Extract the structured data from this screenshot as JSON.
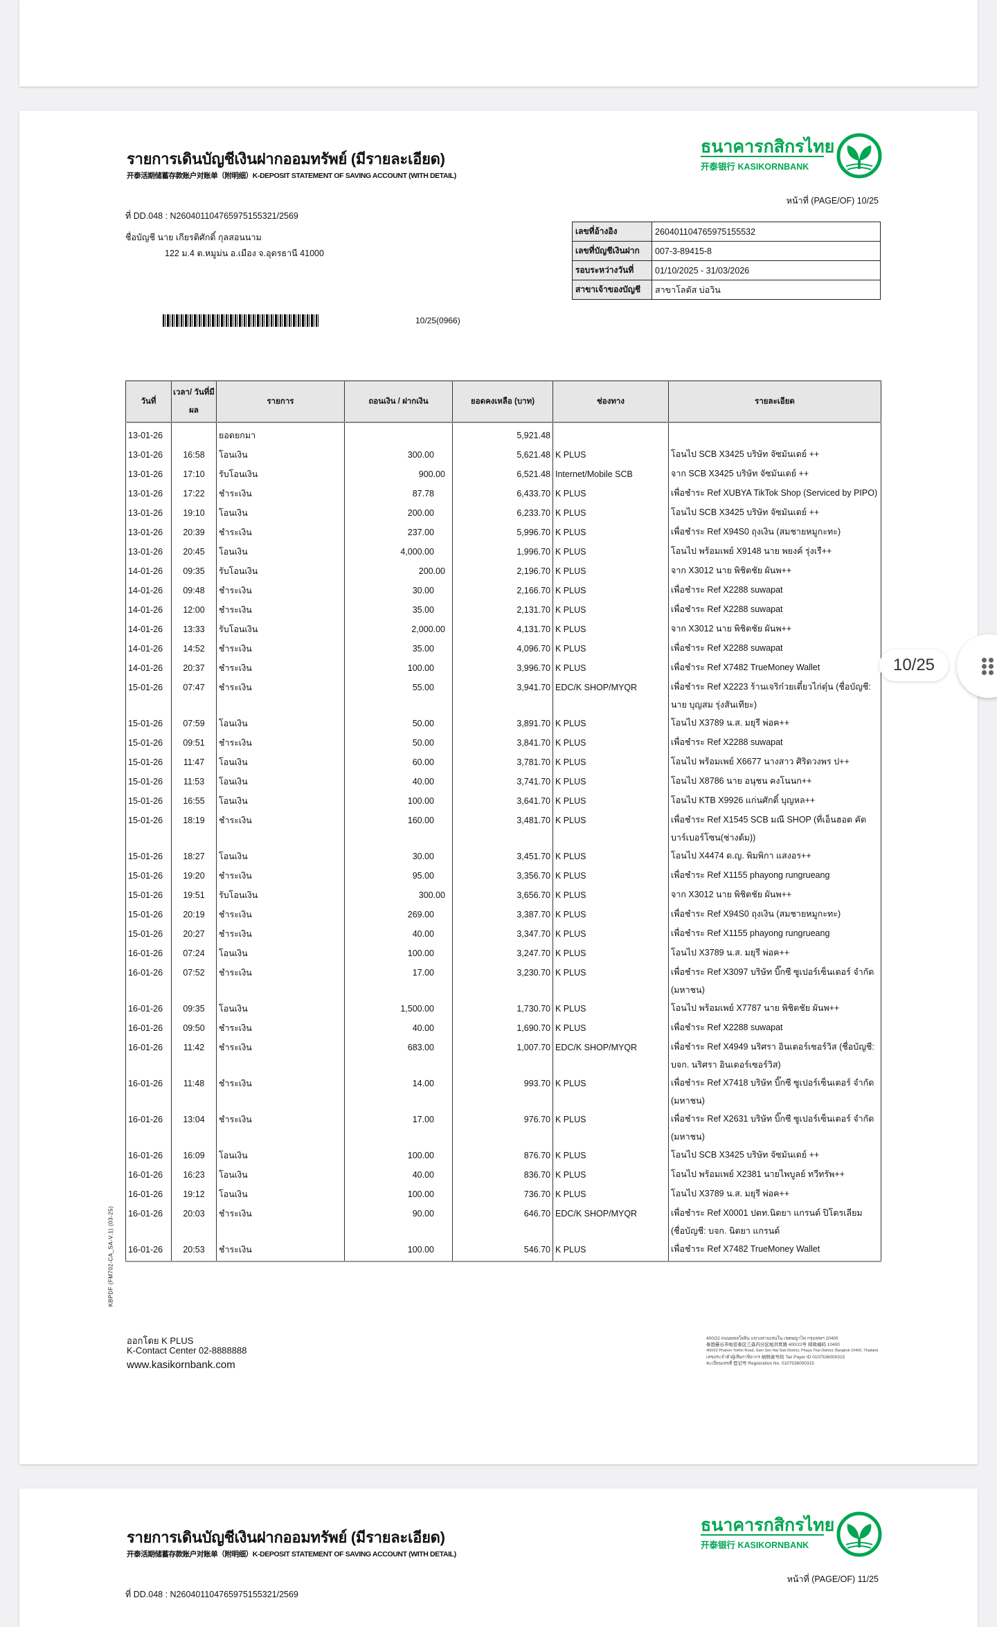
{
  "doc": {
    "title_th": "รายการเดินบัญชีเงินฝากออมทรัพย์ (มีรายละเอียด)",
    "title_en": "开泰活期储蓄存款账户对账单（附明细）K-DEPOSIT STATEMENT OF SAVING ACCOUNT (WITH DETAIL)",
    "bank_name_th": "ธนาคารกสิกรไทย",
    "bank_name_en": "开泰银行 KASIKORNBANK",
    "brand_color": "#00a651",
    "page_of": "หน้าที่ (PAGE/OF) 10/25",
    "ref_line": "ที่ DD.048 : N260401104765975155321/2569",
    "account_name": "ชื่อบัญชี  นาย เกียรติศักดิ์ กุลสอนนาม",
    "address": "122 ม.4 ต.หมูม่น อ.เมือง จ.อุดรธานี 41000",
    "barcode_label": "10/25(0966)",
    "info": [
      {
        "label": "เลขที่อ้างอิง",
        "value": "260401104765975155532"
      },
      {
        "label": "เลขที่บัญชีเงินฝาก",
        "value": "007-3-89415-8"
      },
      {
        "label": "รอบระหว่างวันที่",
        "value": "01/10/2025 - 31/03/2026"
      },
      {
        "label": "สาขาเจ้าของบัญชี",
        "value": "สาขาโลตัส บ่อวิน"
      }
    ],
    "form_code": "KBPDF (FM702-CA_SA-V.1) (03-25)",
    "columns": [
      "วันที่",
      "เวลา/ วันที่มีผล",
      "รายการ",
      "ถอนเงิน / ฝากเงิน",
      "ยอดคงเหลือ (บาท)",
      "ช่องทาง",
      "รายละเอียด"
    ],
    "rows": [
      {
        "date": "13-01-26",
        "time": "",
        "type": "ยอดยกมา",
        "withdraw": "",
        "deposit": "",
        "balance": "5,921.48",
        "channel": "",
        "detail": ""
      },
      {
        "date": "13-01-26",
        "time": "16:58",
        "type": "โอนเงิน",
        "withdraw": "300.00",
        "deposit": "",
        "balance": "5,621.48",
        "channel": "K PLUS",
        "detail": "โอนไป SCB X3425 บริษัท จัซมันเดย์ ++"
      },
      {
        "date": "13-01-26",
        "time": "17:10",
        "type": "รับโอนเงิน",
        "withdraw": "",
        "deposit": "900.00",
        "balance": "6,521.48",
        "channel": "Internet/Mobile SCB",
        "detail": "จาก SCB X3425 บริษัท จัซมันเดย์ ++"
      },
      {
        "date": "13-01-26",
        "time": "17:22",
        "type": "ชำระเงิน",
        "withdraw": "87.78",
        "deposit": "",
        "balance": "6,433.70",
        "channel": "K PLUS",
        "detail": "เพื่อชำระ Ref XUBYA TikTok Shop (Serviced by PIPO)"
      },
      {
        "date": "13-01-26",
        "time": "19:10",
        "type": "โอนเงิน",
        "withdraw": "200.00",
        "deposit": "",
        "balance": "6,233.70",
        "channel": "K PLUS",
        "detail": "โอนไป SCB X3425 บริษัท จัซมันเดย์ ++"
      },
      {
        "date": "13-01-26",
        "time": "20:39",
        "type": "ชำระเงิน",
        "withdraw": "237.00",
        "deposit": "",
        "balance": "5,996.70",
        "channel": "K PLUS",
        "detail": "เพื่อชำระ Ref X94S0 ถุงเงิน (สมชายหมูกะทะ)"
      },
      {
        "date": "13-01-26",
        "time": "20:45",
        "type": "โอนเงิน",
        "withdraw": "4,000.00",
        "deposit": "",
        "balance": "1,996.70",
        "channel": "K PLUS",
        "detail": "โอนไป พร้อมเพย์ X9148 นาย พยงค์ รุ่งเรื++"
      },
      {
        "date": "14-01-26",
        "time": "09:35",
        "type": "รับโอนเงิน",
        "withdraw": "",
        "deposit": "200.00",
        "balance": "2,196.70",
        "channel": "K PLUS",
        "detail": "จาก X3012 นาย พิชิตชัย ผันพ++"
      },
      {
        "date": "14-01-26",
        "time": "09:48",
        "type": "ชำระเงิน",
        "withdraw": "30.00",
        "deposit": "",
        "balance": "2,166.70",
        "channel": "K PLUS",
        "detail": "เพื่อชำระ Ref X2288 suwapat"
      },
      {
        "date": "14-01-26",
        "time": "12:00",
        "type": "ชำระเงิน",
        "withdraw": "35.00",
        "deposit": "",
        "balance": "2,131.70",
        "channel": "K PLUS",
        "detail": "เพื่อชำระ Ref X2288 suwapat"
      },
      {
        "date": "14-01-26",
        "time": "13:33",
        "type": "รับโอนเงิน",
        "withdraw": "",
        "deposit": "2,000.00",
        "balance": "4,131.70",
        "channel": "K PLUS",
        "detail": "จาก X3012 นาย พิชิตชัย ผันพ++"
      },
      {
        "date": "14-01-26",
        "time": "14:52",
        "type": "ชำระเงิน",
        "withdraw": "35.00",
        "deposit": "",
        "balance": "4,096.70",
        "channel": "K PLUS",
        "detail": "เพื่อชำระ Ref X2288 suwapat"
      },
      {
        "date": "14-01-26",
        "time": "20:37",
        "type": "ชำระเงิน",
        "withdraw": "100.00",
        "deposit": "",
        "balance": "3,996.70",
        "channel": "K PLUS",
        "detail": "เพื่อชำระ Ref X7482 TrueMoney Wallet"
      },
      {
        "date": "15-01-26",
        "time": "07:47",
        "type": "ชำระเงิน",
        "withdraw": "55.00",
        "deposit": "",
        "balance": "3,941.70",
        "channel": "EDC/K SHOP/MYQR",
        "detail": "เพื่อชำระ Ref X2223 ร้านเจริก๋วยเตี๋ยวไก่ตุ๋น (ชื่อบัญชี: นาย บุญสม รุ่งสันเทียะ)"
      },
      {
        "date": "15-01-26",
        "time": "07:59",
        "type": "โอนเงิน",
        "withdraw": "50.00",
        "deposit": "",
        "balance": "3,891.70",
        "channel": "K PLUS",
        "detail": "โอนไป X3789 น.ส. มยุรี พ่อค++"
      },
      {
        "date": "15-01-26",
        "time": "09:51",
        "type": "ชำระเงิน",
        "withdraw": "50.00",
        "deposit": "",
        "balance": "3,841.70",
        "channel": "K PLUS",
        "detail": "เพื่อชำระ Ref X2288 suwapat"
      },
      {
        "date": "15-01-26",
        "time": "11:47",
        "type": "โอนเงิน",
        "withdraw": "60.00",
        "deposit": "",
        "balance": "3,781.70",
        "channel": "K PLUS",
        "detail": "โอนไป พร้อมเพย์ X6677 นางสาว ศิริดวงพร ป++"
      },
      {
        "date": "15-01-26",
        "time": "11:53",
        "type": "โอนเงิน",
        "withdraw": "40.00",
        "deposit": "",
        "balance": "3,741.70",
        "channel": "K PLUS",
        "detail": "โอนไป X8786 นาย อนุชน คงโนนก++"
      },
      {
        "date": "15-01-26",
        "time": "16:55",
        "type": "โอนเงิน",
        "withdraw": "100.00",
        "deposit": "",
        "balance": "3,641.70",
        "channel": "K PLUS",
        "detail": "โอนไป KTB X9926 แก่นศักดิ์ บุญหล++"
      },
      {
        "date": "15-01-26",
        "time": "18:19",
        "type": "ชำระเงิน",
        "withdraw": "160.00",
        "deposit": "",
        "balance": "3,481.70",
        "channel": "K PLUS",
        "detail": "เพื่อชำระ Ref X1545 SCB มณี SHOP (ที่เอ็นฮอต คัตบาร์เบอร์โซน(ช่างต้ม))"
      },
      {
        "date": "15-01-26",
        "time": "18:27",
        "type": "โอนเงิน",
        "withdraw": "30.00",
        "deposit": "",
        "balance": "3,451.70",
        "channel": "K PLUS",
        "detail": "โอนไป X4474 ด.ญ. พิมพิกา แสงอร++"
      },
      {
        "date": "15-01-26",
        "time": "19:20",
        "type": "ชำระเงิน",
        "withdraw": "95.00",
        "deposit": "",
        "balance": "3,356.70",
        "channel": "K PLUS",
        "detail": "เพื่อชำระ Ref X1155 phayong rungrueang"
      },
      {
        "date": "15-01-26",
        "time": "19:51",
        "type": "รับโอนเงิน",
        "withdraw": "",
        "deposit": "300.00",
        "balance": "3,656.70",
        "channel": "K PLUS",
        "detail": "จาก X3012 นาย พิชิตชัย ผันพ++"
      },
      {
        "date": "15-01-26",
        "time": "20:19",
        "type": "ชำระเงิน",
        "withdraw": "269.00",
        "deposit": "",
        "balance": "3,387.70",
        "channel": "K PLUS",
        "detail": "เพื่อชำระ Ref X94S0 ถุงเงิน (สมชายหมูกะทะ)"
      },
      {
        "date": "15-01-26",
        "time": "20:27",
        "type": "ชำระเงิน",
        "withdraw": "40.00",
        "deposit": "",
        "balance": "3,347.70",
        "channel": "K PLUS",
        "detail": "เพื่อชำระ Ref X1155 phayong rungrueang"
      },
      {
        "date": "16-01-26",
        "time": "07:24",
        "type": "โอนเงิน",
        "withdraw": "100.00",
        "deposit": "",
        "balance": "3,247.70",
        "channel": "K PLUS",
        "detail": "โอนไป X3789 น.ส. มยุรี พ่อค++"
      },
      {
        "date": "16-01-26",
        "time": "07:52",
        "type": "ชำระเงิน",
        "withdraw": "17.00",
        "deposit": "",
        "balance": "3,230.70",
        "channel": "K PLUS",
        "detail": "เพื่อชำระ Ref X3097 บริษัท บิ๊กซี ซูเปอร์เซ็นเตอร์ จำกัด (มหาชน)"
      },
      {
        "date": "16-01-26",
        "time": "09:35",
        "type": "โอนเงิน",
        "withdraw": "1,500.00",
        "deposit": "",
        "balance": "1,730.70",
        "channel": "K PLUS",
        "detail": "โอนไป พร้อมเพย์ X7787 นาย พิชิตชัย ผันพ++"
      },
      {
        "date": "16-01-26",
        "time": "09:50",
        "type": "ชำระเงิน",
        "withdraw": "40.00",
        "deposit": "",
        "balance": "1,690.70",
        "channel": "K PLUS",
        "detail": "เพื่อชำระ Ref X2288 suwapat"
      },
      {
        "date": "16-01-26",
        "time": "11:42",
        "type": "ชำระเงิน",
        "withdraw": "683.00",
        "deposit": "",
        "balance": "1,007.70",
        "channel": "EDC/K SHOP/MYQR",
        "detail": "เพื่อชำระ Ref X4949 นริศรา อินเตอร์เซอร์วิส (ชื่อบัญชี: บจก. นริศรา อินเตอร์เซอร์วิส)"
      },
      {
        "date": "16-01-26",
        "time": "11:48",
        "type": "ชำระเงิน",
        "withdraw": "14.00",
        "deposit": "",
        "balance": "993.70",
        "channel": "K PLUS",
        "detail": "เพื่อชำระ Ref X7418 บริษัท บิ๊กซี ซูเปอร์เซ็นเตอร์ จำกัด (มหาชน)"
      },
      {
        "date": "16-01-26",
        "time": "13:04",
        "type": "ชำระเงิน",
        "withdraw": "17.00",
        "deposit": "",
        "balance": "976.70",
        "channel": "K PLUS",
        "detail": "เพื่อชำระ Ref X2631 บริษัท บิ๊กซี ซูเปอร์เซ็นเตอร์ จำกัด (มหาชน)"
      },
      {
        "date": "16-01-26",
        "time": "16:09",
        "type": "โอนเงิน",
        "withdraw": "100.00",
        "deposit": "",
        "balance": "876.70",
        "channel": "K PLUS",
        "detail": "โอนไป SCB X3425 บริษัท จัซมันเดย์ ++"
      },
      {
        "date": "16-01-26",
        "time": "16:23",
        "type": "โอนเงิน",
        "withdraw": "40.00",
        "deposit": "",
        "balance": "836.70",
        "channel": "K PLUS",
        "detail": "โอนไป พร้อมเพย์ X2381 นายไพบูลย์ ทวีทรัพ++"
      },
      {
        "date": "16-01-26",
        "time": "19:12",
        "type": "โอนเงิน",
        "withdraw": "100.00",
        "deposit": "",
        "balance": "736.70",
        "channel": "K PLUS",
        "detail": "โอนไป X3789 น.ส. มยุรี พ่อค++"
      },
      {
        "date": "16-01-26",
        "time": "20:03",
        "type": "ชำระเงิน",
        "withdraw": "90.00",
        "deposit": "",
        "balance": "646.70",
        "channel": "EDC/K SHOP/MYQR",
        "detail": "เพื่อชำระ Ref X0001 ปตท.นิตยา แกรนด์ ปิโตรเลียม (ชื่อบัญชี: บจก. นิตยา แกรนด์"
      },
      {
        "date": "16-01-26",
        "time": "20:53",
        "type": "ชำระเงิน",
        "withdraw": "100.00",
        "deposit": "",
        "balance": "546.70",
        "channel": "K PLUS",
        "detail": "เพื่อชำระ Ref X7482 TrueMoney Wallet"
      }
    ],
    "footer": {
      "issued_by": "ออกโดย K PLUS",
      "contact": "K-Contact Center 02-8888888",
      "website": "www.kasikornbank.com",
      "address_lines": [
        "400/22 ถนนพหลโยธิน แขวงสามเสนใน เขตพญาไท กรุงเทพฯ 10400",
        "泰国曼谷市帕亚泰区三森内分区帕洪育路 400/22号 邮政编码 10400",
        "400/22 Phahon Yothin Road, Sam Sen Nai Sub-District, Phaya Thai District, Bangkok 10400, Thailand",
        "เลขประจำตัวผู้เสียภาษีอากร 纳税者号码 Tax Payer ID 0107536000315",
        "ทะเบียนเลขที่ 登记号 Registration No. 0107536000315"
      ]
    }
  },
  "next_page": {
    "page_of": "หน้าที่ (PAGE/OF) 11/25",
    "ref_line": "ที่ DD.048 : N260401104765975155321/2569"
  },
  "viewer": {
    "page_indicator": "10/25"
  }
}
